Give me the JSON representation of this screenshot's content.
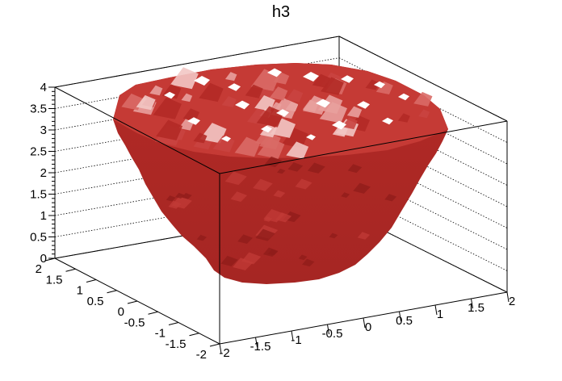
{
  "chart_data": {
    "type": "surface3d",
    "title": "h3",
    "z_axis": {
      "ticks": [
        "0",
        "0.5",
        "1",
        "1.5",
        "2",
        "2.5",
        "3",
        "3.5",
        "4"
      ],
      "range": [
        0,
        4
      ]
    },
    "y_axis": {
      "ticks": [
        "-2",
        "-1.5",
        "-1",
        "-0.5",
        "0",
        "0.5",
        "1",
        "1.5",
        "2"
      ],
      "range": [
        -2,
        2
      ]
    },
    "x_axis": {
      "ticks": [
        "-2",
        "-1.5",
        "-1",
        "-0.5",
        "0",
        "0.5",
        "1",
        "1.5",
        "2"
      ],
      "range": [
        -2,
        2
      ]
    },
    "grid": true,
    "surface": {
      "shape": "paraboloid bowl, z approximately x^2 + y^2",
      "z_min": 0.1,
      "z_max": 4,
      "color": "#b22a26"
    },
    "colors": {
      "surface_base": "#b22a26",
      "surface_dark": "#8f1c1a",
      "surface_highlight": "#f2c6c4",
      "frame": "#000000",
      "grid": "#000000"
    }
  }
}
